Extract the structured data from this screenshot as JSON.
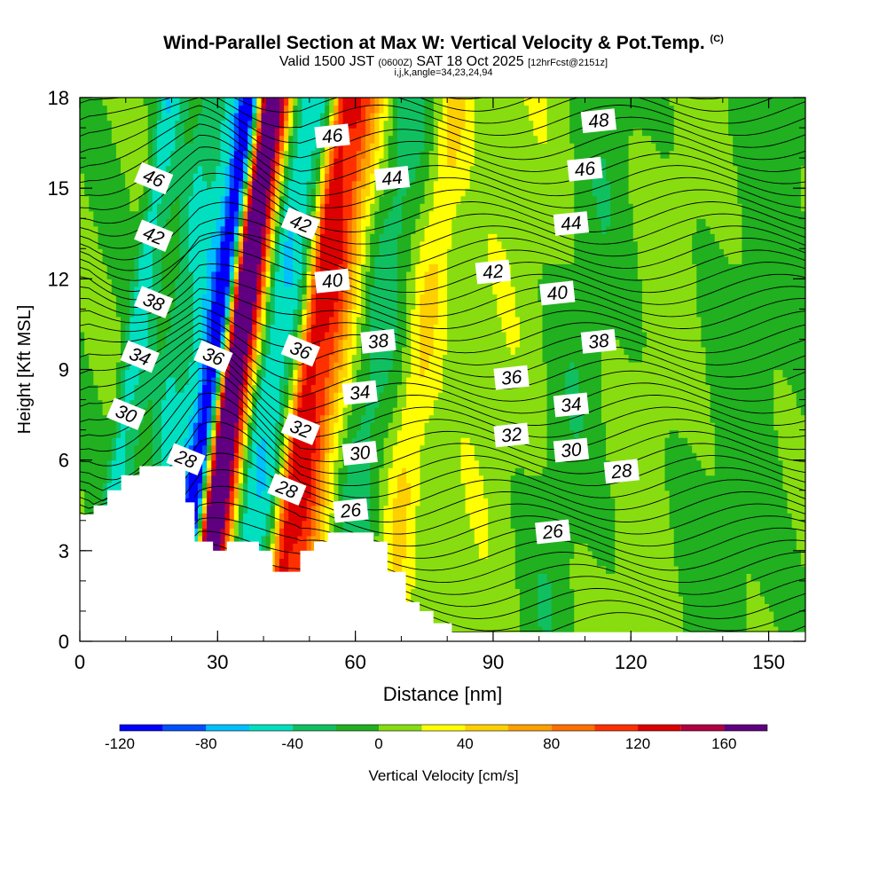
{
  "chart_data": {
    "type": "contour",
    "title": "Wind-Parallel Section at Max W: Vertical Velocity & Pot.Temp.",
    "copyright": "(C)",
    "subtitle": {
      "valid": "Valid 1500 JST",
      "utc": "(0600Z)",
      "date": "SAT 18 Oct 2025",
      "forecast": "[12hrFcst@2151z]"
    },
    "indices": "i,j,k,angle=34,23,24,94",
    "xlabel": "Distance [nm]",
    "ylabel": "Height [Kft MSL]",
    "xlim": [
      0,
      158
    ],
    "ylim": [
      0,
      18
    ],
    "x_ticks": [
      "0",
      "30",
      "60",
      "90",
      "120",
      "150"
    ],
    "y_ticks": [
      "0",
      "3",
      "6",
      "9",
      "12",
      "15",
      "18"
    ],
    "colorbar": {
      "label": "Vertical Velocity [cm/s]",
      "tick_labels": [
        "-120",
        "-80",
        "-40",
        "0",
        "40",
        "80",
        "120",
        "160"
      ],
      "levels": [
        -120,
        -100,
        -80,
        -60,
        -40,
        -20,
        0,
        20,
        40,
        60,
        80,
        100,
        120,
        140,
        160,
        180
      ],
      "colors": [
        "#0000ff",
        "#0050ff",
        "#00c0ff",
        "#00e0c0",
        "#10c060",
        "#20b020",
        "#88dd10",
        "#ffff00",
        "#ffd000",
        "#ffa000",
        "#ff7000",
        "#ff3000",
        "#dd0000",
        "#b00040",
        "#600080"
      ]
    },
    "vertical_velocity_features": [
      {
        "x": 3,
        "w": 2,
        "value": -50
      },
      {
        "x": 6,
        "w": 2,
        "value": -25
      },
      {
        "x": 12,
        "w": 3,
        "value": -35
      },
      {
        "x": 17,
        "w": 3,
        "value": -45
      },
      {
        "x": 21,
        "w": 2.5,
        "value": -120
      },
      {
        "x": 25,
        "w": 2.5,
        "value": 180
      },
      {
        "x": 28,
        "w": 3,
        "value": 110
      },
      {
        "x": 32,
        "w": 3,
        "value": -55
      },
      {
        "x": 36,
        "w": 2.5,
        "value": -40
      },
      {
        "x": 41,
        "w": 2,
        "value": 70
      },
      {
        "x": 44,
        "w": 3.5,
        "value": 100
      },
      {
        "x": 48,
        "w": 4,
        "value": 45
      },
      {
        "x": 56,
        "w": 5,
        "value": -30
      },
      {
        "x": 66,
        "w": 4,
        "value": 40
      },
      {
        "x": 82,
        "w": 10,
        "value": 15
      },
      {
        "x": 100,
        "w": 6,
        "value": -15
      },
      {
        "x": 118,
        "w": 6,
        "value": 12
      },
      {
        "x": 138,
        "w": 8,
        "value": -12
      }
    ],
    "contour_labels": [
      {
        "text": "46",
        "x": 16,
        "y": 15.3
      },
      {
        "text": "42",
        "x": 16,
        "y": 13.4
      },
      {
        "text": "38",
        "x": 16,
        "y": 11.2
      },
      {
        "text": "34",
        "x": 13,
        "y": 9.4
      },
      {
        "text": "30",
        "x": 10,
        "y": 7.5
      },
      {
        "text": "28",
        "x": 23,
        "y": 6.0
      },
      {
        "text": "36",
        "x": 29,
        "y": 9.4
      },
      {
        "text": "46",
        "x": 55,
        "y": 16.7
      },
      {
        "text": "44",
        "x": 68,
        "y": 15.3
      },
      {
        "text": "42",
        "x": 48,
        "y": 13.8
      },
      {
        "text": "40",
        "x": 55,
        "y": 11.9
      },
      {
        "text": "38",
        "x": 65,
        "y": 9.9
      },
      {
        "text": "36",
        "x": 48,
        "y": 9.6
      },
      {
        "text": "34",
        "x": 61,
        "y": 8.2
      },
      {
        "text": "32",
        "x": 48,
        "y": 7.0
      },
      {
        "text": "30",
        "x": 61,
        "y": 6.2
      },
      {
        "text": "28",
        "x": 45,
        "y": 5.0
      },
      {
        "text": "26",
        "x": 59,
        "y": 4.3
      },
      {
        "text": "48",
        "x": 113,
        "y": 17.2
      },
      {
        "text": "46",
        "x": 110,
        "y": 15.6
      },
      {
        "text": "44",
        "x": 107,
        "y": 13.8
      },
      {
        "text": "42",
        "x": 90,
        "y": 12.2
      },
      {
        "text": "40",
        "x": 104,
        "y": 11.5
      },
      {
        "text": "38",
        "x": 113,
        "y": 9.9
      },
      {
        "text": "36",
        "x": 94,
        "y": 8.7
      },
      {
        "text": "34",
        "x": 107,
        "y": 7.8
      },
      {
        "text": "32",
        "x": 94,
        "y": 6.8
      },
      {
        "text": "30",
        "x": 107,
        "y": 6.3
      },
      {
        "text": "28",
        "x": 118,
        "y": 5.6
      },
      {
        "text": "26",
        "x": 103,
        "y": 3.6
      }
    ],
    "terrain_heights": [
      {
        "x": 0,
        "h": 4.2
      },
      {
        "x": 3,
        "h": 4.2
      },
      {
        "x": 3,
        "h": 4.5
      },
      {
        "x": 6,
        "h": 4.5
      },
      {
        "x": 6,
        "h": 5.0
      },
      {
        "x": 9,
        "h": 5.0
      },
      {
        "x": 9,
        "h": 5.5
      },
      {
        "x": 13,
        "h": 5.5
      },
      {
        "x": 13,
        "h": 5.8
      },
      {
        "x": 23,
        "h": 5.8
      },
      {
        "x": 23,
        "h": 4.6
      },
      {
        "x": 25,
        "h": 4.6
      },
      {
        "x": 25,
        "h": 3.3
      },
      {
        "x": 29,
        "h": 3.3
      },
      {
        "x": 29,
        "h": 3.0
      },
      {
        "x": 32,
        "h": 3.0
      },
      {
        "x": 32,
        "h": 3.3
      },
      {
        "x": 39,
        "h": 3.3
      },
      {
        "x": 39,
        "h": 3.0
      },
      {
        "x": 42,
        "h": 3.0
      },
      {
        "x": 42,
        "h": 2.3
      },
      {
        "x": 48,
        "h": 2.3
      },
      {
        "x": 48,
        "h": 3.0
      },
      {
        "x": 51,
        "h": 3.0
      },
      {
        "x": 51,
        "h": 3.3
      },
      {
        "x": 54,
        "h": 3.3
      },
      {
        "x": 54,
        "h": 3.6
      },
      {
        "x": 64,
        "h": 3.6
      },
      {
        "x": 64,
        "h": 3.3
      },
      {
        "x": 67,
        "h": 3.3
      },
      {
        "x": 67,
        "h": 2.3
      },
      {
        "x": 71,
        "h": 2.3
      },
      {
        "x": 71,
        "h": 1.3
      },
      {
        "x": 74,
        "h": 1.3
      },
      {
        "x": 74,
        "h": 1.0
      },
      {
        "x": 77,
        "h": 1.0
      },
      {
        "x": 77,
        "h": 0.6
      },
      {
        "x": 81,
        "h": 0.6
      },
      {
        "x": 81,
        "h": 0.3
      },
      {
        "x": 158,
        "h": 0.3
      }
    ]
  }
}
